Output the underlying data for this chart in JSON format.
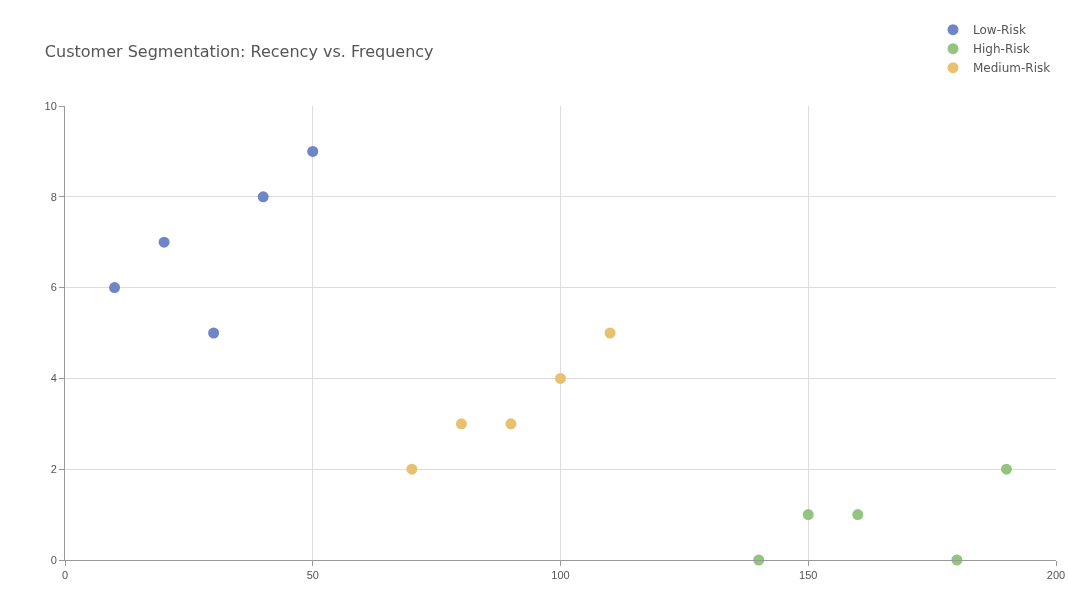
{
  "chart_data": {
    "type": "scatter",
    "title": "Customer Segmentation: Recency vs. Frequency",
    "series": [
      {
        "name": "Low-Risk",
        "color": "#6f86c6",
        "x": [
          10,
          20,
          30,
          40,
          50
        ],
        "values": [
          6,
          7,
          5,
          8,
          9
        ]
      },
      {
        "name": "High-Risk",
        "color": "#93c57f",
        "x": [
          140,
          150,
          160,
          180,
          190
        ],
        "values": [
          0,
          1,
          1,
          0,
          2
        ]
      },
      {
        "name": "Medium-Risk",
        "color": "#e8c06e",
        "x": [
          70,
          80,
          90,
          100,
          110
        ],
        "values": [
          2,
          3,
          3,
          4,
          5
        ]
      }
    ],
    "xlim": [
      0,
      200
    ],
    "xticks": [
      0,
      50,
      100,
      150,
      200
    ],
    "ylim": [
      0,
      10
    ],
    "yticks": [
      0,
      2,
      4,
      6,
      8,
      10
    ],
    "grid": true,
    "legend": "top right",
    "marker": "circle"
  }
}
